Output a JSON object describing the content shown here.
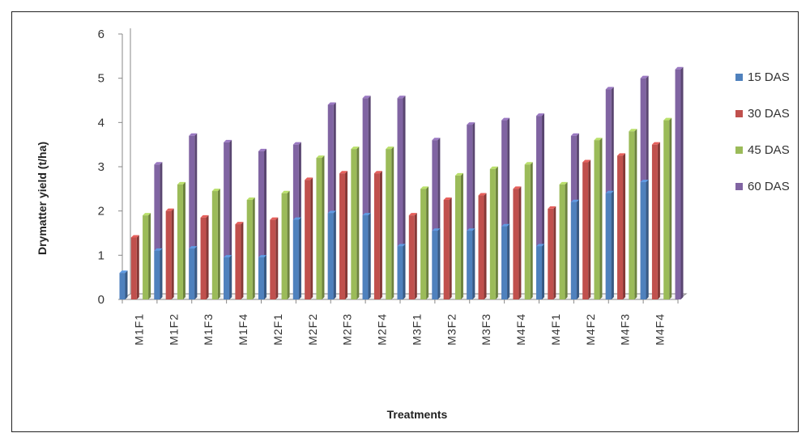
{
  "chart_data": {
    "type": "bar",
    "title": "",
    "xlabel": "Treatments",
    "ylabel": "Drymatter yield (t/ha)",
    "ylim": [
      0,
      6
    ],
    "yticks": [
      "0",
      "1",
      "2",
      "3",
      "4",
      "5",
      "6"
    ],
    "categories": [
      "M1F1",
      "M1F2",
      "M1F3",
      "M1F4",
      "M2F1",
      "M2F2",
      "M2F3",
      "M2F4",
      "M3F1",
      "M3F2",
      "M3F3",
      "M4F4",
      "M4F1",
      "M4F2",
      "M4F3",
      "M4F4"
    ],
    "series": [
      {
        "name": "15 DAS",
        "color": "#4f81bd",
        "values": [
          0.6,
          1.1,
          1.15,
          0.95,
          0.95,
          1.8,
          1.95,
          1.9,
          1.2,
          1.55,
          1.55,
          1.65,
          1.2,
          2.2,
          2.4,
          2.65
        ]
      },
      {
        "name": "30 DAS",
        "color": "#c0504d",
        "values": [
          1.4,
          2.0,
          1.85,
          1.7,
          1.8,
          2.7,
          2.85,
          2.85,
          1.9,
          2.25,
          2.35,
          2.5,
          2.05,
          3.1,
          3.25,
          3.5
        ]
      },
      {
        "name": "45 DAS",
        "color": "#9bbb59",
        "values": [
          1.9,
          2.6,
          2.45,
          2.25,
          2.4,
          3.2,
          3.4,
          3.4,
          2.5,
          2.8,
          2.95,
          3.05,
          2.6,
          3.6,
          3.8,
          4.05
        ]
      },
      {
        "name": "60 DAS",
        "color": "#8064a2",
        "values": [
          3.05,
          3.7,
          3.55,
          3.35,
          3.5,
          4.4,
          4.55,
          4.55,
          3.6,
          3.95,
          4.05,
          4.15,
          3.7,
          4.75,
          5.0,
          5.2
        ]
      }
    ],
    "legend_position": "right",
    "grid": false
  }
}
